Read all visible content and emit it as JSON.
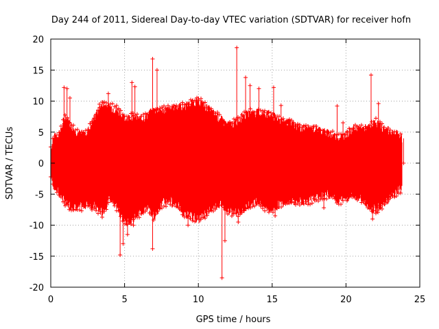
{
  "chart_data": {
    "type": "scatter",
    "title": "Day 244 of 2011, Sidereal Day-to-day VTEC variation (SDTVAR) for receiver hofn",
    "xlabel": "GPS time / hours",
    "ylabel": "SDTVAR / TECUs",
    "xlim": [
      0,
      25
    ],
    "ylim": [
      -20,
      20
    ],
    "x_ticks": [
      0,
      5,
      10,
      15,
      20,
      25
    ],
    "y_ticks": [
      -20,
      -15,
      -10,
      -5,
      0,
      5,
      10,
      15,
      20
    ],
    "x_tick_labels": [
      "0",
      "5",
      "10",
      "15",
      "20",
      "25"
    ],
    "y_tick_labels": [
      "-20",
      "-15",
      "-10",
      "-5",
      "0",
      "5",
      "10",
      "15",
      "20"
    ],
    "grid": true,
    "series_color": "#ff0000",
    "marker": "+",
    "envelope": {
      "x": [
        0.0,
        0.2,
        0.5,
        0.8,
        1.0,
        1.5,
        2.0,
        2.5,
        3.0,
        3.5,
        4.0,
        4.5,
        5.0,
        5.5,
        6.0,
        6.5,
        7.0,
        7.5,
        8.0,
        8.5,
        9.0,
        9.5,
        10.0,
        10.5,
        11.0,
        11.5,
        12.0,
        12.5,
        13.0,
        13.5,
        14.0,
        14.5,
        15.0,
        15.5,
        16.0,
        16.5,
        17.0,
        17.5,
        18.0,
        18.5,
        19.0,
        19.5,
        20.0,
        20.5,
        21.0,
        21.5,
        22.0,
        22.5,
        23.0,
        23.5,
        23.8
      ],
      "upper": [
        2.0,
        4.0,
        4.5,
        6.0,
        7.5,
        5.5,
        4.5,
        5.0,
        7.5,
        9.5,
        9.0,
        8.5,
        7.0,
        7.5,
        7.0,
        7.5,
        8.5,
        8.5,
        8.5,
        9.0,
        9.0,
        9.5,
        10.0,
        9.0,
        8.0,
        7.0,
        6.0,
        6.5,
        7.5,
        8.0,
        8.0,
        8.0,
        7.5,
        7.0,
        6.5,
        6.0,
        5.5,
        5.5,
        5.5,
        5.0,
        4.5,
        4.0,
        4.5,
        5.5,
        5.5,
        5.5,
        6.5,
        5.5,
        5.0,
        4.5,
        4.0
      ],
      "lower": [
        -2.0,
        -3.5,
        -4.5,
        -5.5,
        -6.5,
        -7.0,
        -7.0,
        -6.5,
        -7.0,
        -8.0,
        -5.5,
        -7.0,
        -9.5,
        -9.0,
        -8.0,
        -7.0,
        -8.5,
        -6.5,
        -6.0,
        -6.5,
        -8.0,
        -8.5,
        -9.0,
        -8.0,
        -7.0,
        -6.5,
        -7.5,
        -8.0,
        -7.5,
        -6.5,
        -6.0,
        -7.0,
        -7.5,
        -6.5,
        -6.0,
        -6.0,
        -6.0,
        -6.0,
        -5.5,
        -5.0,
        -5.0,
        -6.0,
        -5.5,
        -5.0,
        -5.5,
        -7.0,
        -7.5,
        -6.5,
        -5.5,
        -4.5,
        -4.0
      ]
    },
    "spikes": [
      {
        "x": 0.9,
        "y": 12.2
      },
      {
        "x": 1.1,
        "y": 12.0
      },
      {
        "x": 1.3,
        "y": 10.5
      },
      {
        "x": 3.3,
        "y": 9.5
      },
      {
        "x": 3.5,
        "y": 9.8
      },
      {
        "x": 3.9,
        "y": 11.2
      },
      {
        "x": 4.6,
        "y": 8.8
      },
      {
        "x": 5.5,
        "y": 13.0
      },
      {
        "x": 5.7,
        "y": 12.3
      },
      {
        "x": 6.9,
        "y": 16.8
      },
      {
        "x": 7.2,
        "y": 15.0
      },
      {
        "x": 12.6,
        "y": 18.6
      },
      {
        "x": 13.2,
        "y": 13.8
      },
      {
        "x": 13.5,
        "y": 12.5
      },
      {
        "x": 14.1,
        "y": 12.0
      },
      {
        "x": 15.1,
        "y": 12.2
      },
      {
        "x": 15.6,
        "y": 9.3
      },
      {
        "x": 19.4,
        "y": 9.2
      },
      {
        "x": 19.8,
        "y": 6.5
      },
      {
        "x": 21.7,
        "y": 14.2
      },
      {
        "x": 22.2,
        "y": 9.6
      },
      {
        "x": 4.7,
        "y": -14.8
      },
      {
        "x": 4.9,
        "y": -13.0
      },
      {
        "x": 5.2,
        "y": -11.5
      },
      {
        "x": 5.6,
        "y": -10.0
      },
      {
        "x": 6.9,
        "y": -13.8
      },
      {
        "x": 9.3,
        "y": -10.0
      },
      {
        "x": 11.6,
        "y": -18.5
      },
      {
        "x": 11.8,
        "y": -12.5
      },
      {
        "x": 12.7,
        "y": -9.5
      },
      {
        "x": 15.2,
        "y": -8.5
      },
      {
        "x": 18.5,
        "y": -7.2
      },
      {
        "x": 21.8,
        "y": -9.0
      },
      {
        "x": 22.3,
        "y": -6.8
      },
      {
        "x": 23.9,
        "y": 0.0
      }
    ]
  }
}
